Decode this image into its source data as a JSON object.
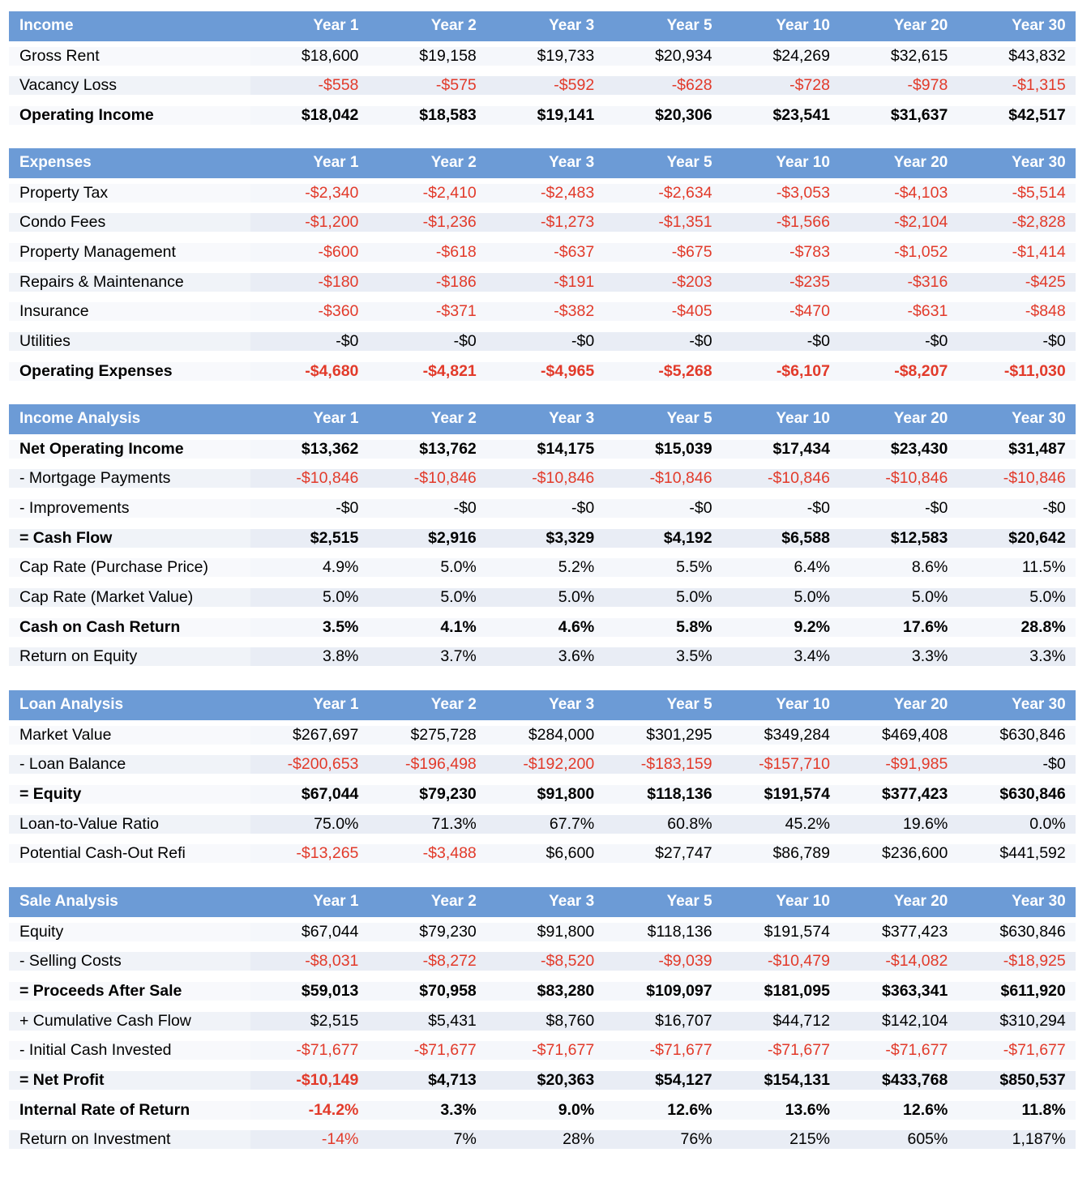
{
  "columns": [
    "Year 1",
    "Year 2",
    "Year 3",
    "Year 5",
    "Year 10",
    "Year 20",
    "Year 30"
  ],
  "sections": [
    {
      "title": "Income",
      "rows": [
        {
          "label": "Gross Rent",
          "bold": false,
          "values": [
            "$18,600",
            "$19,158",
            "$19,733",
            "$20,934",
            "$24,269",
            "$32,615",
            "$43,832"
          ]
        },
        {
          "label": "Vacancy Loss",
          "bold": false,
          "values": [
            "-$558",
            "-$575",
            "-$592",
            "-$628",
            "-$728",
            "-$978",
            "-$1,315"
          ]
        },
        {
          "label": "Operating Income",
          "bold": true,
          "values": [
            "$18,042",
            "$18,583",
            "$19,141",
            "$20,306",
            "$23,541",
            "$31,637",
            "$42,517"
          ]
        }
      ]
    },
    {
      "title": "Expenses",
      "rows": [
        {
          "label": "Property Tax",
          "bold": false,
          "values": [
            "-$2,340",
            "-$2,410",
            "-$2,483",
            "-$2,634",
            "-$3,053",
            "-$4,103",
            "-$5,514"
          ]
        },
        {
          "label": "Condo Fees",
          "bold": false,
          "values": [
            "-$1,200",
            "-$1,236",
            "-$1,273",
            "-$1,351",
            "-$1,566",
            "-$2,104",
            "-$2,828"
          ]
        },
        {
          "label": "Property Management",
          "bold": false,
          "values": [
            "-$600",
            "-$618",
            "-$637",
            "-$675",
            "-$783",
            "-$1,052",
            "-$1,414"
          ]
        },
        {
          "label": "Repairs & Maintenance",
          "bold": false,
          "values": [
            "-$180",
            "-$186",
            "-$191",
            "-$203",
            "-$235",
            "-$316",
            "-$425"
          ]
        },
        {
          "label": "Insurance",
          "bold": false,
          "values": [
            "-$360",
            "-$371",
            "-$382",
            "-$405",
            "-$470",
            "-$631",
            "-$848"
          ]
        },
        {
          "label": "Utilities",
          "bold": false,
          "values": [
            "-$0",
            "-$0",
            "-$0",
            "-$0",
            "-$0",
            "-$0",
            "-$0"
          ]
        },
        {
          "label": "Operating Expenses",
          "bold": true,
          "values": [
            "-$4,680",
            "-$4,821",
            "-$4,965",
            "-$5,268",
            "-$6,107",
            "-$8,207",
            "-$11,030"
          ]
        }
      ]
    },
    {
      "title": "Income Analysis",
      "rows": [
        {
          "label": "Net Operating Income",
          "bold": true,
          "values": [
            "$13,362",
            "$13,762",
            "$14,175",
            "$15,039",
            "$17,434",
            "$23,430",
            "$31,487"
          ]
        },
        {
          "label": "- Mortgage Payments",
          "bold": false,
          "values": [
            "-$10,846",
            "-$10,846",
            "-$10,846",
            "-$10,846",
            "-$10,846",
            "-$10,846",
            "-$10,846"
          ]
        },
        {
          "label": "- Improvements",
          "bold": false,
          "values": [
            "-$0",
            "-$0",
            "-$0",
            "-$0",
            "-$0",
            "-$0",
            "-$0"
          ]
        },
        {
          "label": "= Cash Flow",
          "bold": true,
          "values": [
            "$2,515",
            "$2,916",
            "$3,329",
            "$4,192",
            "$6,588",
            "$12,583",
            "$20,642"
          ]
        },
        {
          "label": "Cap Rate (Purchase Price)",
          "bold": false,
          "values": [
            "4.9%",
            "5.0%",
            "5.2%",
            "5.5%",
            "6.4%",
            "8.6%",
            "11.5%"
          ]
        },
        {
          "label": "Cap Rate (Market Value)",
          "bold": false,
          "values": [
            "5.0%",
            "5.0%",
            "5.0%",
            "5.0%",
            "5.0%",
            "5.0%",
            "5.0%"
          ]
        },
        {
          "label": "Cash on Cash Return",
          "bold": true,
          "values": [
            "3.5%",
            "4.1%",
            "4.6%",
            "5.8%",
            "9.2%",
            "17.6%",
            "28.8%"
          ]
        },
        {
          "label": "Return on Equity",
          "bold": false,
          "values": [
            "3.8%",
            "3.7%",
            "3.6%",
            "3.5%",
            "3.4%",
            "3.3%",
            "3.3%"
          ]
        }
      ]
    },
    {
      "title": "Loan Analysis",
      "rows": [
        {
          "label": "Market Value",
          "bold": false,
          "values": [
            "$267,697",
            "$275,728",
            "$284,000",
            "$301,295",
            "$349,284",
            "$469,408",
            "$630,846"
          ]
        },
        {
          "label": "- Loan Balance",
          "bold": false,
          "values": [
            "-$200,653",
            "-$196,498",
            "-$192,200",
            "-$183,159",
            "-$157,710",
            "-$91,985",
            "-$0"
          ]
        },
        {
          "label": "= Equity",
          "bold": true,
          "values": [
            "$67,044",
            "$79,230",
            "$91,800",
            "$118,136",
            "$191,574",
            "$377,423",
            "$630,846"
          ]
        },
        {
          "label": "Loan-to-Value Ratio",
          "bold": false,
          "values": [
            "75.0%",
            "71.3%",
            "67.7%",
            "60.8%",
            "45.2%",
            "19.6%",
            "0.0%"
          ]
        },
        {
          "label": "Potential Cash-Out Refi",
          "bold": false,
          "values": [
            "-$13,265",
            "-$3,488",
            "$6,600",
            "$27,747",
            "$86,789",
            "$236,600",
            "$441,592"
          ]
        }
      ]
    },
    {
      "title": "Sale Analysis",
      "rows": [
        {
          "label": "Equity",
          "bold": false,
          "values": [
            "$67,044",
            "$79,230",
            "$91,800",
            "$118,136",
            "$191,574",
            "$377,423",
            "$630,846"
          ]
        },
        {
          "label": "- Selling Costs",
          "bold": false,
          "values": [
            "-$8,031",
            "-$8,272",
            "-$8,520",
            "-$9,039",
            "-$10,479",
            "-$14,082",
            "-$18,925"
          ]
        },
        {
          "label": "= Proceeds After Sale",
          "bold": true,
          "values": [
            "$59,013",
            "$70,958",
            "$83,280",
            "$109,097",
            "$181,095",
            "$363,341",
            "$611,920"
          ]
        },
        {
          "label": "+ Cumulative Cash Flow",
          "bold": false,
          "values": [
            "$2,515",
            "$5,431",
            "$8,760",
            "$16,707",
            "$44,712",
            "$142,104",
            "$310,294"
          ]
        },
        {
          "label": "- Initial Cash Invested",
          "bold": false,
          "values": [
            "-$71,677",
            "-$71,677",
            "-$71,677",
            "-$71,677",
            "-$71,677",
            "-$71,677",
            "-$71,677"
          ]
        },
        {
          "label": "= Net Profit",
          "bold": true,
          "values": [
            "-$10,149",
            "$4,713",
            "$20,363",
            "$54,127",
            "$154,131",
            "$433,768",
            "$850,537"
          ]
        },
        {
          "label": "Internal Rate of Return",
          "bold": true,
          "values": [
            "-14.2%",
            "3.3%",
            "9.0%",
            "12.6%",
            "13.6%",
            "12.6%",
            "11.8%"
          ]
        },
        {
          "label": "Return on Investment",
          "bold": false,
          "values": [
            "-14%",
            "7%",
            "28%",
            "76%",
            "215%",
            "605%",
            "1,187%"
          ]
        }
      ]
    }
  ]
}
